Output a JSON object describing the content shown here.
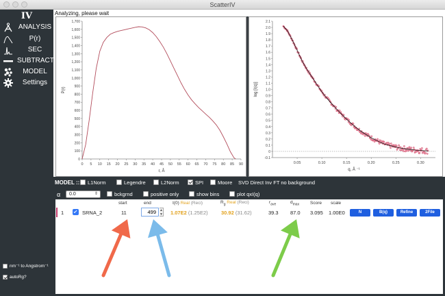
{
  "window": {
    "title": "ScatterIV"
  },
  "status_text": "Analyzing, please wait",
  "sidebar": {
    "logo": "IV",
    "items": [
      {
        "label": "ANALYSIS",
        "icon": "angstrom-icon"
      },
      {
        "label": "P(r)",
        "icon": "pr-curve-icon"
      },
      {
        "label": "SEC",
        "icon": "sec-peaks-icon"
      },
      {
        "label": "SUBTRACT",
        "icon": "subtract-icon"
      },
      {
        "label": "MODEL",
        "icon": "model-icon"
      },
      {
        "label": "Settings",
        "icon": "gear-icon"
      }
    ],
    "options": [
      {
        "label": "nm⁻¹ to Angstrom⁻¹",
        "checked": false
      },
      {
        "label": "autoRg?",
        "checked": true
      }
    ]
  },
  "pr_plot": {
    "ylabel": "P(r)",
    "xlabel": "r, Å",
    "y_ticks": [
      "0",
      "100",
      "200",
      "300",
      "400",
      "500",
      "600",
      "700",
      "800",
      "900",
      "1,000",
      "1,100",
      "1,200",
      "1,300",
      "1,400",
      "1,500",
      "1,600",
      "1,700"
    ],
    "x_ticks": [
      "0",
      "5",
      "10",
      "15",
      "20",
      "25",
      "30",
      "35",
      "40",
      "45",
      "50",
      "55",
      "60",
      "65",
      "70",
      "75",
      "80",
      "85",
      "90"
    ],
    "line_color": "#b24b5a",
    "curve": [
      [
        0,
        0
      ],
      [
        2,
        180
      ],
      [
        4,
        480
      ],
      [
        6,
        820
      ],
      [
        8,
        1120
      ],
      [
        10,
        1330
      ],
      [
        12,
        1440
      ],
      [
        14,
        1500
      ],
      [
        16,
        1540
      ],
      [
        18,
        1560
      ],
      [
        20,
        1575
      ],
      [
        22,
        1585
      ],
      [
        24,
        1595
      ],
      [
        26,
        1605
      ],
      [
        28,
        1615
      ],
      [
        30,
        1625
      ],
      [
        32,
        1632
      ],
      [
        34,
        1630
      ],
      [
        36,
        1618
      ],
      [
        38,
        1595
      ],
      [
        40,
        1560
      ],
      [
        42,
        1510
      ],
      [
        44,
        1450
      ],
      [
        46,
        1380
      ],
      [
        48,
        1300
      ],
      [
        50,
        1210
      ],
      [
        52,
        1120
      ],
      [
        54,
        1030
      ],
      [
        56,
        940
      ],
      [
        58,
        860
      ],
      [
        60,
        790
      ],
      [
        62,
        730
      ],
      [
        64,
        680
      ],
      [
        66,
        635
      ],
      [
        68,
        595
      ],
      [
        70,
        555
      ],
      [
        72,
        515
      ],
      [
        74,
        470
      ],
      [
        76,
        420
      ],
      [
        78,
        355
      ],
      [
        80,
        275
      ],
      [
        82,
        185
      ],
      [
        84,
        90
      ],
      [
        86,
        15
      ],
      [
        87,
        0
      ]
    ]
  },
  "iq_plot": {
    "ylabel": "log [I(q)]",
    "xlabel": "q, Å ⁻¹",
    "y_ticks": [
      "-0.1",
      "0",
      "0.1",
      "0.2",
      "0.3",
      "0.4",
      "0.5",
      "0.6",
      "0.7",
      "0.8",
      "0.9",
      "1.0",
      "1.1",
      "1.2",
      "1.3",
      "1.4",
      "1.5",
      "1.6",
      "1.7",
      "1.8",
      "1.9",
      "2.0",
      "2.1"
    ],
    "x_ticks": [
      "0.05",
      "0.10",
      "0.15",
      "0.20",
      "0.25",
      "0.30"
    ],
    "data_color": "#d9365a",
    "point_color": "#e6b8c4",
    "fit_color": "#111111",
    "zero_line_color": "#999999",
    "fit": [
      [
        0.022,
        2.02
      ],
      [
        0.03,
        1.95
      ],
      [
        0.04,
        1.8
      ],
      [
        0.05,
        1.63
      ],
      [
        0.06,
        1.46
      ],
      [
        0.07,
        1.32
      ],
      [
        0.08,
        1.2
      ],
      [
        0.09,
        1.08
      ],
      [
        0.1,
        0.96
      ],
      [
        0.11,
        0.86
      ],
      [
        0.12,
        0.77
      ],
      [
        0.13,
        0.68
      ],
      [
        0.14,
        0.6
      ],
      [
        0.15,
        0.52
      ],
      [
        0.16,
        0.45
      ],
      [
        0.17,
        0.38
      ],
      [
        0.18,
        0.32
      ],
      [
        0.19,
        0.27
      ],
      [
        0.2,
        0.22
      ],
      [
        0.21,
        0.18
      ],
      [
        0.22,
        0.14
      ],
      [
        0.23,
        0.11
      ],
      [
        0.24,
        0.09
      ],
      [
        0.25,
        0.07
      ],
      [
        0.26,
        0.05
      ],
      [
        0.27,
        0.04
      ],
      [
        0.28,
        0.03
      ],
      [
        0.29,
        0.02
      ],
      [
        0.3,
        0.015
      ],
      [
        0.31,
        0.01
      ],
      [
        0.315,
        0.008
      ]
    ]
  },
  "model_options": {
    "title": "MODEL ::",
    "checkboxes": [
      {
        "label": "L1Norm",
        "checked": false
      },
      {
        "label": "Legendre",
        "checked": false
      },
      {
        "label": "L2Norm",
        "checked": false
      },
      {
        "label": "SPI",
        "checked": true
      },
      {
        "label": "Moore",
        "checked": false
      }
    ],
    "method_text": "SVD Direct Inv FT no background",
    "alpha_symbol": "α",
    "alpha_value": "0.0",
    "row2": [
      {
        "label": "bckgrnd",
        "checked": false
      },
      {
        "label": "positive only",
        "checked": false
      },
      {
        "label": "show bins",
        "checked": false
      },
      {
        "label": "plot qxI(q)",
        "checked": false
      }
    ]
  },
  "results": {
    "headers": {
      "start": "start",
      "end": "end",
      "i0": "I(0)",
      "i0_real": "Real",
      "i0_reci": "(Reci)",
      "rg": "R",
      "rg_sub": "g",
      "rg_real": "Real",
      "rg_reci": "(Reci)",
      "rave": "r",
      "rave_sub": "ave",
      "dmax": "d",
      "dmax_sub": "max",
      "score": "Score",
      "scale": "scale"
    },
    "row": {
      "index": "1",
      "checked": true,
      "name": "SRNA_2",
      "start": "11",
      "end": "499",
      "i0_real": "1.07E2",
      "i0_reci": "(1.25E2)",
      "rg_real": "30.92",
      "rg_reci": "(31.62)",
      "rave": "39.3",
      "dmax": "87.0",
      "score": "3.095",
      "scale": "1.00E0",
      "buttons": [
        "N",
        "B(q)",
        "Refine",
        "2File"
      ]
    },
    "arrows": [
      {
        "color": "#f0694a",
        "icon": "arrow-up-icon"
      },
      {
        "color": "#7bbbea",
        "icon": "arrow-up-icon"
      },
      {
        "color": "#7dcc4a",
        "icon": "arrow-up-icon"
      }
    ]
  }
}
